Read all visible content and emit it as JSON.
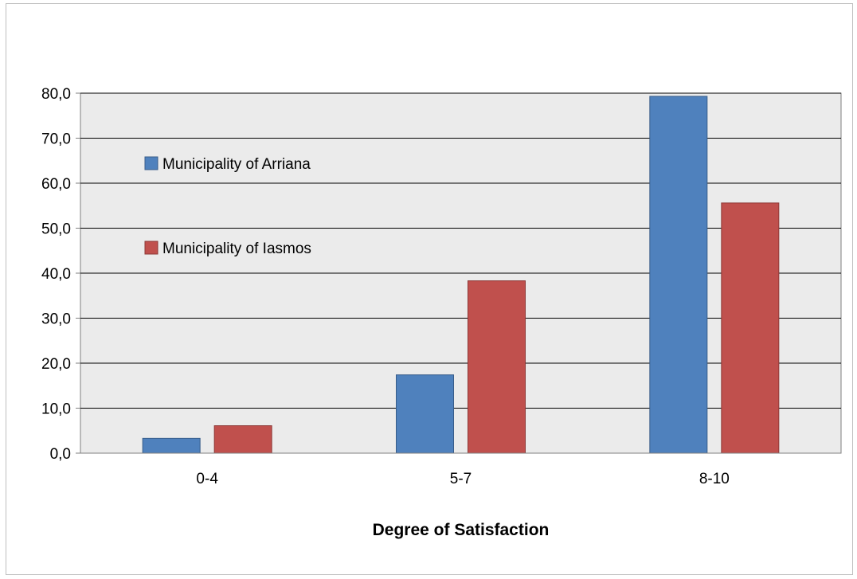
{
  "chart_data": {
    "type": "bar",
    "categories": [
      "0-4",
      "5-7",
      "8-10"
    ],
    "series": [
      {
        "name": "Municipality of Arriana",
        "values": [
          3.3,
          17.4,
          79.3
        ],
        "color": "#4f81bd",
        "stroke": "#385d8a"
      },
      {
        "name": "Municipality of Iasmos",
        "values": [
          6.1,
          38.3,
          55.6
        ],
        "color": "#c0504d",
        "stroke": "#8c3836"
      }
    ],
    "title": "",
    "xlabel": "Degree of Satisfaction",
    "ylabel": "",
    "ylim": [
      0,
      80
    ],
    "yticks": [
      "0,0",
      "10,0",
      "20,0",
      "30,0",
      "40,0",
      "50,0",
      "60,0",
      "70,0",
      "80,0"
    ],
    "grid": true,
    "legend": "inside-top-left",
    "plot_background": "#ebebeb",
    "gridline_color": "#000000"
  }
}
